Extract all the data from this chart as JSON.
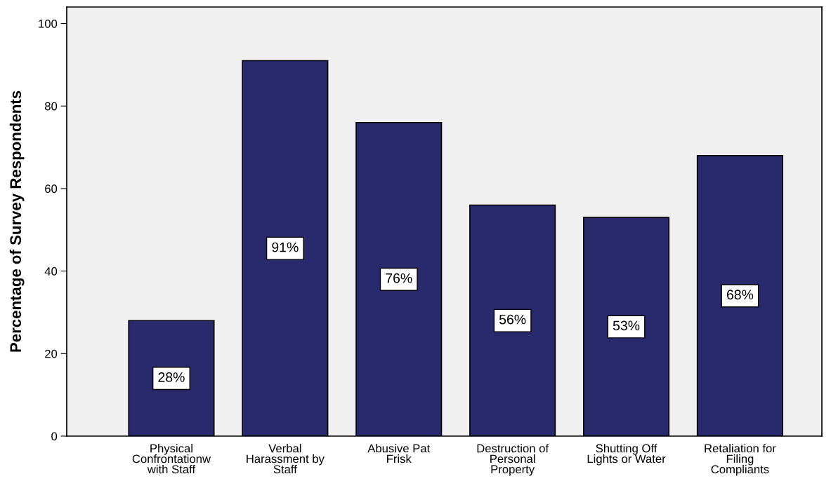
{
  "chart_data": {
    "type": "bar",
    "ylabel": "Percentage of Survey Respondents",
    "categories": [
      "Physical\nConfrontationw\nwith Staff",
      "Verbal\nHarassment by\nStaff",
      "Abusive Pat\nFrisk",
      "Destruction of\nPersonal\nProperty",
      "Shutting Off\nLights or Water",
      "Retaliation for\nFiling\nCompliants"
    ],
    "values": [
      28,
      91,
      76,
      56,
      53,
      68
    ],
    "value_labels": [
      "28%",
      "91%",
      "76%",
      "56%",
      "53%",
      "68%"
    ],
    "color": "#29296e",
    "ylim": [
      0,
      104
    ],
    "yticks": [
      0,
      20,
      40,
      60,
      80,
      100
    ],
    "grid": false
  }
}
